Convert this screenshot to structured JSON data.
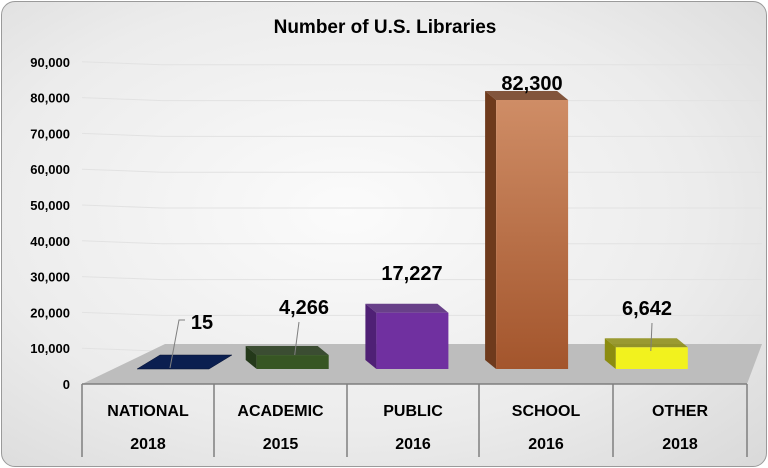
{
  "chart_data": {
    "type": "bar",
    "title": "Number of U.S. Libraries",
    "categories": [
      "NATIONAL",
      "ACADEMIC",
      "PUBLIC",
      "SCHOOL",
      "OTHER"
    ],
    "years": [
      "2018",
      "2015",
      "2016",
      "2016",
      "2018"
    ],
    "values": [
      15,
      4266,
      17227,
      82300,
      6642
    ],
    "value_labels": [
      "15",
      "4,266",
      "17,227",
      "82,300",
      "6,642"
    ],
    "colors": [
      "#0b1f50",
      "#375623",
      "#7030a0",
      "#c17a52",
      "#f2f21e"
    ],
    "side_colors": [
      "#061233",
      "#24391a",
      "#4f2075",
      "#6e3a1c",
      "#8c8c10"
    ],
    "yticks": [
      "0",
      "10,000",
      "20,000",
      "30,000",
      "40,000",
      "50,000",
      "60,000",
      "70,000",
      "80,000",
      "90,000"
    ],
    "ylim": [
      0,
      90000
    ],
    "xlabel": "",
    "ylabel": "",
    "grid": true
  }
}
